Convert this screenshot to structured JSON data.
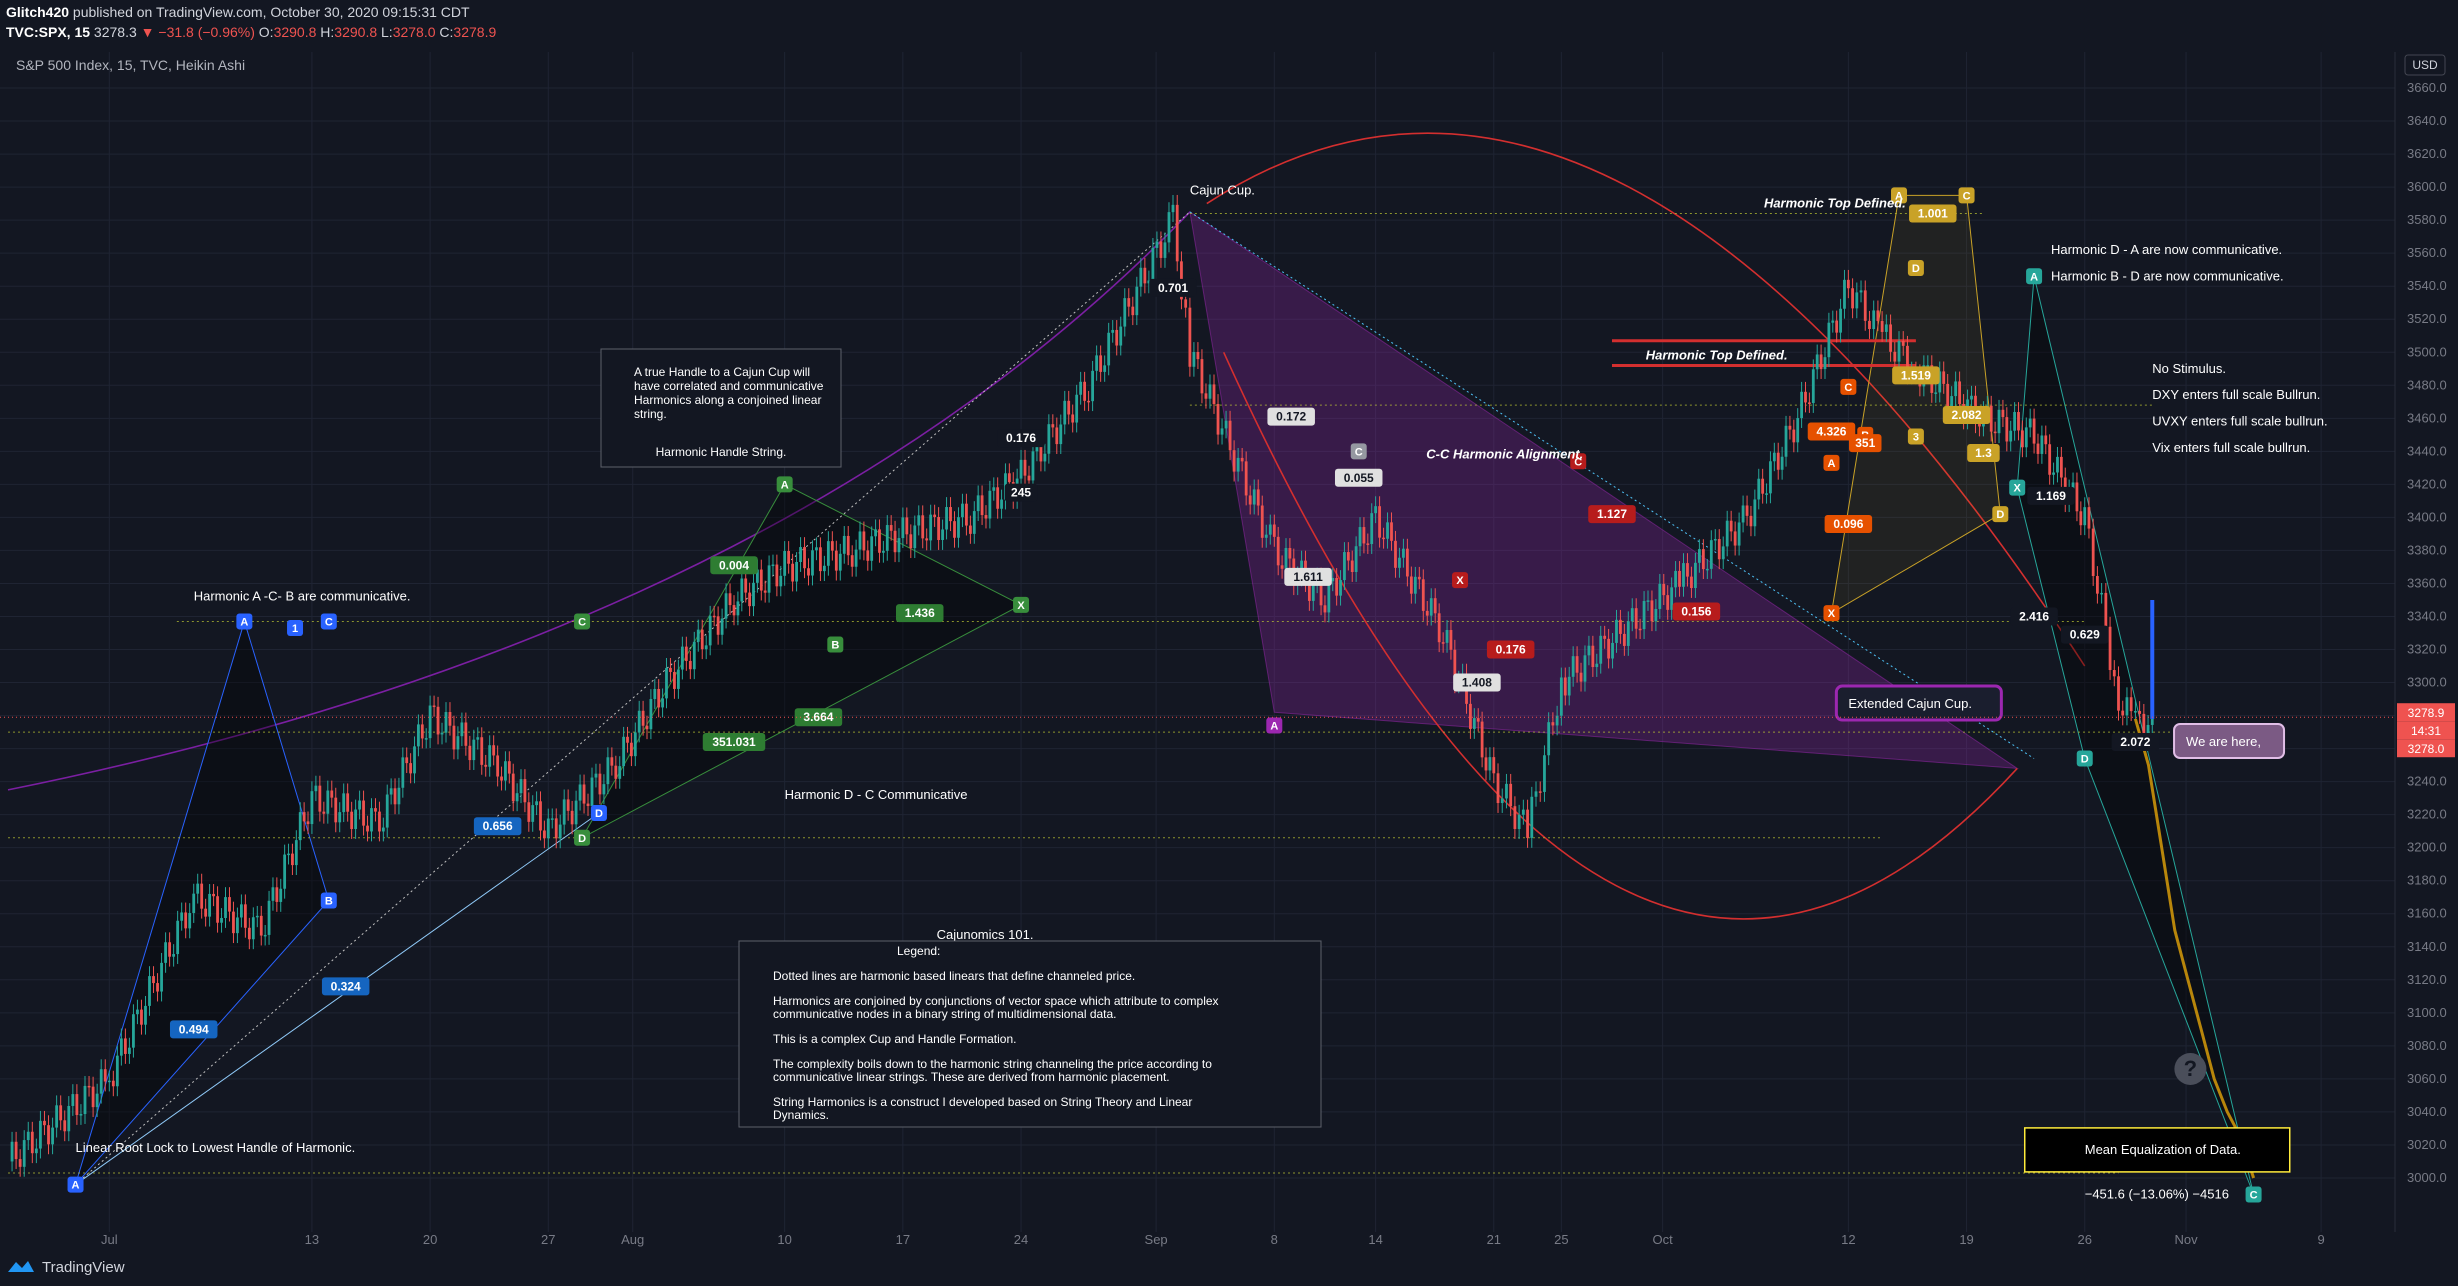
{
  "header": {
    "publisher": "Glitch420",
    "published_text": "published on TradingView.com, October 30, 2020 09:15:31 CDT",
    "symbol": "TVC:SPX, 15",
    "last": "3278.3",
    "change": "−31.8 (−0.96%)",
    "ohlc": {
      "O": "3290.8",
      "H": "3290.8",
      "L": "3278.0",
      "C": "3278.9"
    }
  },
  "legend_title": "S&P 500 Index, 15, TVC, Heikin Ashi",
  "currency": "USD",
  "brand": "TradingView",
  "colors": {
    "bg": "#131722",
    "up": "#26a69a",
    "down": "#ef5350",
    "grid": "#1f2433",
    "axis": "#787b86",
    "purple": "#9c27b0",
    "red": "#d32f2f",
    "gold": "#c9a227"
  },
  "chart_data": {
    "type": "line",
    "chart_style": "Heikin Ashi candles (15m)",
    "x": [
      "Jun 25",
      "Jul 1",
      "Jul 6",
      "Jul 10",
      "Jul 13",
      "Jul 17",
      "Jul 20",
      "Jul 24",
      "Jul 27",
      "Jul 31",
      "Aug 3",
      "Aug 7",
      "Aug 10",
      "Aug 14",
      "Aug 17",
      "Aug 21",
      "Aug 24",
      "Aug 28",
      "Sep 2",
      "Sep 3",
      "Sep 8",
      "Sep 11",
      "Sep 14",
      "Sep 18",
      "Sep 21",
      "Sep 23",
      "Sep 25",
      "Oct 2",
      "Oct 6",
      "Oct 9",
      "Oct 12",
      "Oct 14",
      "Oct 16",
      "Oct 20",
      "Oct 23",
      "Oct 26",
      "Oct 28",
      "Oct 29",
      "Oct 30"
    ],
    "values": [
      3010,
      3060,
      3170,
      3150,
      3230,
      3215,
      3280,
      3250,
      3210,
      3250,
      3300,
      3350,
      3370,
      3380,
      3390,
      3400,
      3425,
      3480,
      3580,
      3500,
      3380,
      3350,
      3400,
      3330,
      3240,
      3210,
      3300,
      3360,
      3400,
      3460,
      3540,
      3510,
      3490,
      3460,
      3450,
      3400,
      3290,
      3275,
      3278
    ],
    "ylim": [
      2980,
      3680
    ],
    "y_ticks": [
      3000,
      3020,
      3040,
      3060,
      3080,
      3100,
      3120,
      3140,
      3160,
      3180,
      3200,
      3220,
      3240,
      3260,
      3280,
      3300,
      3320,
      3340,
      3360,
      3380,
      3400,
      3420,
      3440,
      3460,
      3480,
      3500,
      3520,
      3540,
      3560,
      3580,
      3600,
      3620,
      3640,
      3660
    ],
    "x_ticks": [
      "Jul",
      "13",
      "20",
      "27",
      "Aug",
      "10",
      "17",
      "24",
      "Sep",
      "8",
      "14",
      "21",
      "25",
      "Oct",
      "12",
      "19",
      "26",
      "Nov",
      "9"
    ],
    "price_labels": [
      {
        "text": "3278.9",
        "color": "#ef5350"
      },
      {
        "text": "14:31",
        "color": "#ef5350"
      },
      {
        "text": "3278.0",
        "color": "#ef5350"
      }
    ],
    "projection_values": [
      3278,
      3250,
      3200,
      3150,
      3120,
      3090,
      3060,
      3040,
      3025,
      3000
    ],
    "annotations": [
      {
        "text": "Cajun Cup.",
        "x": "Sep 3",
        "y": 3598
      },
      {
        "text": "Harmonic Top Defined.",
        "x": "Oct 7",
        "y": 3590
      },
      {
        "text": "Harmonic Top Defined.",
        "x": "Sep 30",
        "y": 3498
      },
      {
        "text": "Harmonic D - A are now communicative.",
        "x": "Oct 24",
        "y": 3562
      },
      {
        "text": "Harmonic B - D are now communicative.",
        "x": "Oct 24",
        "y": 3546
      },
      {
        "text": "No Stimulus.",
        "x": "Oct 30",
        "y": 3490
      },
      {
        "text": "DXY enters full scale Bullrun.",
        "x": "Oct 30",
        "y": 3474
      },
      {
        "text": "UVXY enters full scale bullrun.",
        "x": "Oct 30",
        "y": 3458
      },
      {
        "text": "Vix enters full scale bullrun.",
        "x": "Oct 30",
        "y": 3442
      },
      {
        "text": "C-C Harmonic Alignment.",
        "x": "Sep 17",
        "y": 3438
      },
      {
        "text": "Harmonic A -C- B are communicative.",
        "x": "Jul 6",
        "y": 3352
      },
      {
        "text": "Harmonic D - C Communicative",
        "x": "Aug 10",
        "y": 3232
      },
      {
        "text": "Cajunomics 101.",
        "x": "Aug 19",
        "y": 3147
      },
      {
        "text": "Linear Root Lock to Lowest Handle of Harmonic.",
        "x": "Jun 29",
        "y": 3018
      },
      {
        "text": "Extended Cajun Cup.",
        "x": "Oct 12",
        "y": 3287
      },
      {
        "text": "We are here,",
        "x": "Nov 1",
        "y": 3264
      },
      {
        "text": "Mean Equalization of Data.",
        "x": "Oct 26",
        "y": 3017
      },
      {
        "text": "−451.6 (−13.06%) −4516",
        "x": "Oct 26",
        "y": 2990
      }
    ],
    "handle_box": {
      "text": "A true Handle to a Cajun Cup will have correlated and communicative Harmonics along a conjoined linear string.",
      "subtitle": "Harmonic Handle String."
    },
    "legend_box": {
      "title": "Legend:",
      "lines": [
        "Dotted lines are harmonic based linears that define channeled price.",
        "Harmonics are conjoined by conjunctions of vector space which attribute to complex communicative nodes in a binary string of multidimensional data.",
        "This is a complex Cup and Handle Formation.",
        "The complexity boils down to the harmonic string channeling the price according to communicative linear strings. These are derived from harmonic placement.",
        "String Harmonics is a construct I developed based on String Theory and Linear Dynamics."
      ]
    },
    "points": [
      {
        "t": "A",
        "x": "Jun 29",
        "y": 2996,
        "c": "#2962ff"
      },
      {
        "t": "A",
        "x": "Jul 9",
        "y": 3337,
        "c": "#2962ff"
      },
      {
        "t": "1",
        "x": "Jul 12",
        "y": 3333,
        "c": "#2962ff"
      },
      {
        "t": "C",
        "x": "Jul 14",
        "y": 3337,
        "c": "#2962ff"
      },
      {
        "t": "B",
        "x": "Jul 14",
        "y": 3168,
        "c": "#2962ff"
      },
      {
        "t": "D",
        "x": "Jul 30",
        "y": 3221,
        "c": "#2962ff"
      },
      {
        "t": "C",
        "x": "Jul 29",
        "y": 3337,
        "c": "#388e3c"
      },
      {
        "t": "D",
        "x": "Jul 29",
        "y": 3206,
        "c": "#388e3c"
      },
      {
        "t": "A",
        "x": "Aug 10",
        "y": 3420,
        "c": "#388e3c"
      },
      {
        "t": "B",
        "x": "Aug 13",
        "y": 3323,
        "c": "#388e3c"
      },
      {
        "t": "X",
        "x": "Aug 24",
        "y": 3347,
        "c": "#388e3c"
      },
      {
        "t": "C",
        "x": "Sep 13",
        "y": 3440,
        "c": "#9598a1"
      },
      {
        "t": "A",
        "x": "Sep 8",
        "y": 3274,
        "c": "#9c27b0"
      },
      {
        "t": "C",
        "x": "Sep 26",
        "y": 3434,
        "c": "#b71c1c"
      },
      {
        "t": "X",
        "x": "Sep 19",
        "y": 3362,
        "c": "#b71c1c"
      },
      {
        "t": "A",
        "x": "Oct 11",
        "y": 3433,
        "c": "#e65100"
      },
      {
        "t": "C",
        "x": "Oct 12",
        "y": 3479,
        "c": "#e65100"
      },
      {
        "t": "B",
        "x": "Oct 13",
        "y": 3450,
        "c": "#e65100"
      },
      {
        "t": "X",
        "x": "Oct 11",
        "y": 3342,
        "c": "#e65100"
      },
      {
        "t": "A",
        "x": "Oct 15",
        "y": 3595,
        "c": "#c9a227"
      },
      {
        "t": "C",
        "x": "Oct 19",
        "y": 3595,
        "c": "#c9a227"
      },
      {
        "t": "D",
        "x": "Oct 16",
        "y": 3551,
        "c": "#c9a227"
      },
      {
        "t": "3",
        "x": "Oct 16",
        "y": 3449,
        "c": "#c9a227"
      },
      {
        "t": "D",
        "x": "Oct 21",
        "y": 3402,
        "c": "#c9a227"
      },
      {
        "t": "A",
        "x": "Oct 23",
        "y": 3546,
        "c": "#26a69a"
      },
      {
        "t": "X",
        "x": "Oct 22",
        "y": 3418,
        "c": "#26a69a"
      },
      {
        "t": "D",
        "x": "Oct 26",
        "y": 3254,
        "c": "#26a69a"
      },
      {
        "t": "C",
        "x": "Nov 5",
        "y": 2990,
        "c": "#26a69a"
      }
    ],
    "ratios": [
      {
        "t": "0.494",
        "x": "Jul 6",
        "y": 3090,
        "c": "#1565c0"
      },
      {
        "t": "0.324",
        "x": "Jul 15",
        "y": 3116,
        "c": "#1565c0"
      },
      {
        "t": "0.656",
        "x": "Jul 24",
        "y": 3213,
        "c": "#1565c0"
      },
      {
        "t": "0.004",
        "x": "Aug 7",
        "y": 3371,
        "c": "#2e7d32"
      },
      {
        "t": "1.436",
        "x": "Aug 18",
        "y": 3342,
        "c": "#2e7d32"
      },
      {
        "t": "351.031",
        "x": "Aug 7",
        "y": 3264,
        "c": "#2e7d32"
      },
      {
        "t": "3.664",
        "x": "Aug 12",
        "y": 3279,
        "c": "#2e7d32"
      },
      {
        "t": "0.176",
        "x": "Aug 24",
        "y": 3448,
        "c": "#131722"
      },
      {
        "t": "0.701",
        "x": "Sep 2",
        "y": 3539,
        "c": "#131722"
      },
      {
        "t": "245",
        "x": "Aug 24",
        "y": 3415,
        "c": "#131722"
      },
      {
        "t": "0.172",
        "x": "Sep 9",
        "y": 3461,
        "c": "#e0e0e0"
      },
      {
        "t": "0.055",
        "x": "Sep 13",
        "y": 3424,
        "c": "#e0e0e0"
      },
      {
        "t": "1.611",
        "x": "Sep 10",
        "y": 3364,
        "c": "#e0e0e0"
      },
      {
        "t": "1.408",
        "x": "Sep 20",
        "y": 3300,
        "c": "#e0e0e0"
      },
      {
        "t": "0.176",
        "x": "Sep 22",
        "y": 3320,
        "c": "#b71c1c"
      },
      {
        "t": "1.127",
        "x": "Sep 28",
        "y": 3402,
        "c": "#b71c1c"
      },
      {
        "t": "0.156",
        "x": "Oct 3",
        "y": 3343,
        "c": "#b71c1c"
      },
      {
        "t": "4.326",
        "x": "Oct 11",
        "y": 3452,
        "c": "#e65100"
      },
      {
        "t": "0.096",
        "x": "Oct 12",
        "y": 3396,
        "c": "#e65100"
      },
      {
        "t": "351",
        "x": "Oct 13",
        "y": 3445,
        "c": "#e65100"
      },
      {
        "t": "1.001",
        "x": "Oct 17",
        "y": 3584,
        "c": "#c9a227"
      },
      {
        "t": "1.519",
        "x": "Oct 16",
        "y": 3486,
        "c": "#c9a227"
      },
      {
        "t": "2.082",
        "x": "Oct 19",
        "y": 3462,
        "c": "#c9a227"
      },
      {
        "t": "1.3",
        "x": "Oct 20",
        "y": 3439,
        "c": "#c9a227"
      },
      {
        "t": "1.169",
        "x": "Oct 24",
        "y": 3413,
        "c": "#131722"
      },
      {
        "t": "2.416",
        "x": "Oct 23",
        "y": 3340,
        "c": "#131722"
      },
      {
        "t": "0.629",
        "x": "Oct 26",
        "y": 3329,
        "c": "#131722"
      },
      {
        "t": "2.072",
        "x": "Oct 29",
        "y": 3264,
        "c": "#131722"
      }
    ]
  }
}
